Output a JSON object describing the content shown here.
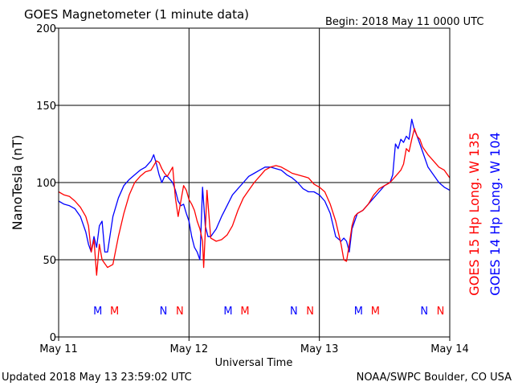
{
  "chart_data": {
    "type": "line",
    "title": "GOES Magnetometer (1 minute data)",
    "begin_label": "Begin:  2018 May 11 0000 UTC",
    "xlabel": "Universal Time",
    "ylabel": "NanoTesla (nT)",
    "ylim": [
      0,
      200
    ],
    "yticks": [
      "0",
      "50",
      "100",
      "150",
      "200"
    ],
    "xlim": [
      0,
      72
    ],
    "xticks": [
      {
        "x": 0,
        "label": "May 11"
      },
      {
        "x": 24,
        "label": "May 12"
      },
      {
        "x": 48,
        "label": "May 13"
      },
      {
        "x": 72,
        "label": "May 14"
      }
    ],
    "grid": true,
    "legend_placement": "right",
    "series": [
      {
        "name": "GOES 15 Hp  Long. W 135",
        "color": "#ff0000",
        "x": [
          0,
          1,
          2,
          3,
          4,
          5,
          5.5,
          6,
          6.5,
          7,
          7.5,
          8,
          9,
          10,
          11,
          12,
          13,
          14,
          15,
          16,
          17,
          17.5,
          18,
          18.5,
          19,
          19.5,
          20,
          20.5,
          21,
          21.5,
          22,
          22.5,
          23,
          23.5,
          24,
          24.5,
          25,
          25.5,
          26,
          26.5,
          26.7,
          27,
          27.3,
          28,
          29,
          30,
          31,
          32,
          33,
          34,
          35,
          36,
          37,
          38,
          39,
          40,
          41,
          42,
          43,
          44,
          45,
          46,
          47,
          48,
          49,
          50,
          51,
          52,
          52.5,
          53,
          53.5,
          54,
          54.5,
          55,
          56,
          57,
          58,
          59,
          60,
          61,
          62,
          63,
          63.5,
          64,
          64.5,
          65,
          65.5,
          66,
          66.5,
          67,
          68,
          69,
          70,
          71,
          72
        ],
        "y": [
          94,
          92,
          91,
          88,
          84,
          78,
          72,
          55,
          63,
          40,
          60,
          50,
          45,
          47,
          65,
          80,
          92,
          100,
          104,
          107,
          108,
          111,
          114,
          113,
          109,
          106,
          104,
          107,
          110,
          90,
          78,
          88,
          98,
          95,
          89,
          86,
          82,
          75,
          70,
          62,
          45,
          68,
          95,
          64,
          62,
          63,
          66,
          72,
          82,
          90,
          95,
          100,
          104,
          108,
          110,
          111,
          110,
          108,
          106,
          105,
          104,
          103,
          99,
          97,
          94,
          86,
          75,
          60,
          50,
          49,
          60,
          72,
          78,
          80,
          82,
          86,
          92,
          96,
          98,
          100,
          104,
          108,
          112,
          122,
          120,
          128,
          135,
          130,
          128,
          123,
          118,
          114,
          110,
          108,
          103
        ]
      },
      {
        "name": "GOES 14 Hp  Long. W 104",
        "color": "#0000ff",
        "x": [
          0,
          1,
          2,
          3,
          4,
          5,
          5.5,
          6,
          6.5,
          7,
          7.5,
          8,
          8.5,
          9,
          10,
          11,
          12,
          13,
          14,
          15,
          16,
          17,
          17.5,
          18,
          18.5,
          19,
          19.5,
          20,
          21,
          21.5,
          22,
          22.5,
          23,
          23.5,
          24,
          24.5,
          25,
          25.5,
          26,
          26.5,
          27,
          27.5,
          28,
          29,
          30,
          31,
          32,
          33,
          34,
          35,
          36,
          37,
          38,
          39,
          40,
          41,
          42,
          43,
          44,
          45,
          46,
          47,
          48,
          49,
          50,
          51,
          52,
          52.5,
          53,
          53.5,
          54,
          55,
          56,
          57,
          58,
          59,
          60,
          61,
          61.5,
          62,
          62.5,
          63,
          63.5,
          64,
          64.5,
          65,
          65.5,
          66,
          66.5,
          67,
          68,
          69,
          70,
          71,
          72
        ],
        "y": [
          88,
          86,
          85,
          83,
          78,
          68,
          60,
          55,
          65,
          58,
          72,
          75,
          55,
          55,
          78,
          90,
          98,
          102,
          105,
          108,
          110,
          114,
          118,
          112,
          105,
          100,
          104,
          104,
          100,
          95,
          88,
          85,
          86,
          80,
          75,
          65,
          58,
          55,
          50,
          97,
          72,
          65,
          65,
          70,
          78,
          85,
          92,
          96,
          100,
          104,
          106,
          108,
          110,
          110,
          109,
          108,
          105,
          103,
          100,
          96,
          94,
          94,
          92,
          88,
          80,
          65,
          62,
          64,
          62,
          55,
          70,
          80,
          82,
          86,
          90,
          94,
          98,
          100,
          105,
          125,
          122,
          128,
          126,
          130,
          128,
          141,
          134,
          130,
          125,
          120,
          110,
          105,
          100,
          97,
          95
        ]
      }
    ],
    "markers": [
      {
        "x": 7.2,
        "label": "M",
        "color": "#0000ff"
      },
      {
        "x": 10.3,
        "label": "M",
        "color": "#ff0000"
      },
      {
        "x": 19.3,
        "label": "N",
        "color": "#0000ff"
      },
      {
        "x": 22.3,
        "label": "N",
        "color": "#ff0000"
      },
      {
        "x": 31.2,
        "label": "M",
        "color": "#0000ff"
      },
      {
        "x": 34.3,
        "label": "M",
        "color": "#ff0000"
      },
      {
        "x": 43.3,
        "label": "N",
        "color": "#0000ff"
      },
      {
        "x": 46.3,
        "label": "N",
        "color": "#ff0000"
      },
      {
        "x": 55.2,
        "label": "M",
        "color": "#0000ff"
      },
      {
        "x": 58.3,
        "label": "M",
        "color": "#ff0000"
      },
      {
        "x": 67.3,
        "label": "N",
        "color": "#0000ff"
      },
      {
        "x": 70.3,
        "label": "N",
        "color": "#ff0000"
      }
    ]
  },
  "footer": {
    "updated": "Updated 2018 May 13 23:59:02 UTC",
    "source": "NOAA/SWPC Boulder, CO USA"
  }
}
